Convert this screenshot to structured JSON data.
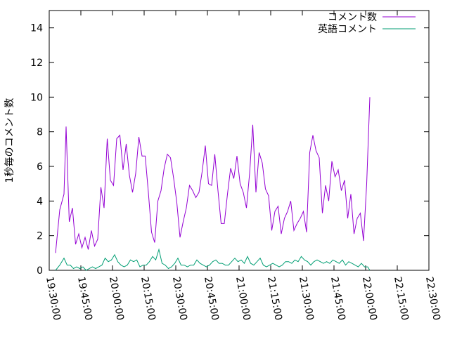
{
  "chart_data": {
    "type": "line",
    "ylabel": "1秒毎のコメント数",
    "ylim": [
      0,
      15
    ],
    "xlim": [
      "19:30:00",
      "22:30:00"
    ],
    "x_tick_labels": [
      "19:30:00",
      "19:45:00",
      "20:00:00",
      "20:15:00",
      "20:30:00",
      "20:45:00",
      "21:00:00",
      "21:15:00",
      "21:30:00",
      "21:45:00",
      "22:00:00",
      "22:15:00",
      "22:30:00"
    ],
    "y_ticks": [
      0,
      2,
      4,
      6,
      8,
      10,
      12,
      14
    ],
    "grid": false,
    "legend": "top-right",
    "series": [
      {
        "name": "コメント数",
        "color": "#9400d3",
        "points": [
          [
            "19:33:00",
            1.0
          ],
          [
            "19:35:00",
            3.5
          ],
          [
            "19:37:00",
            4.4
          ],
          [
            "19:38:00",
            8.3
          ],
          [
            "19:39:30",
            2.8
          ],
          [
            "19:41:00",
            3.6
          ],
          [
            "19:42:30",
            1.5
          ],
          [
            "19:44:00",
            2.1
          ],
          [
            "19:45:30",
            1.3
          ],
          [
            "19:47:00",
            1.9
          ],
          [
            "19:48:30",
            1.2
          ],
          [
            "19:50:00",
            2.3
          ],
          [
            "19:51:30",
            1.4
          ],
          [
            "19:53:00",
            1.8
          ],
          [
            "19:54:30",
            4.8
          ],
          [
            "19:56:00",
            3.6
          ],
          [
            "19:57:30",
            7.6
          ],
          [
            "19:59:00",
            5.2
          ],
          [
            "20:00:30",
            4.9
          ],
          [
            "20:02:00",
            7.6
          ],
          [
            "20:03:30",
            7.8
          ],
          [
            "20:05:00",
            5.8
          ],
          [
            "20:06:30",
            7.3
          ],
          [
            "20:08:00",
            5.5
          ],
          [
            "20:09:30",
            4.5
          ],
          [
            "20:11:00",
            5.6
          ],
          [
            "20:12:30",
            7.7
          ],
          [
            "20:14:00",
            6.6
          ],
          [
            "20:15:30",
            6.6
          ],
          [
            "20:17:00",
            4.5
          ],
          [
            "20:18:30",
            2.2
          ],
          [
            "20:20:00",
            1.6
          ],
          [
            "20:21:30",
            4.0
          ],
          [
            "20:23:00",
            4.6
          ],
          [
            "20:24:30",
            5.9
          ],
          [
            "20:26:00",
            6.7
          ],
          [
            "20:27:30",
            6.5
          ],
          [
            "20:29:00",
            5.3
          ],
          [
            "20:30:30",
            3.9
          ],
          [
            "20:32:00",
            1.9
          ],
          [
            "20:33:30",
            2.8
          ],
          [
            "20:35:00",
            3.6
          ],
          [
            "20:36:30",
            4.9
          ],
          [
            "20:38:00",
            4.6
          ],
          [
            "20:39:30",
            4.2
          ],
          [
            "20:41:00",
            4.5
          ],
          [
            "20:42:30",
            5.7
          ],
          [
            "20:44:00",
            7.2
          ],
          [
            "20:45:30",
            5.0
          ],
          [
            "20:47:00",
            4.9
          ],
          [
            "20:48:30",
            6.7
          ],
          [
            "20:50:00",
            4.6
          ],
          [
            "20:51:30",
            2.7
          ],
          [
            "20:53:00",
            2.7
          ],
          [
            "20:54:30",
            4.4
          ],
          [
            "20:56:00",
            5.9
          ],
          [
            "20:57:30",
            5.3
          ],
          [
            "20:59:00",
            6.6
          ],
          [
            "21:00:30",
            5.0
          ],
          [
            "21:02:00",
            4.5
          ],
          [
            "21:03:30",
            3.6
          ],
          [
            "21:05:00",
            5.6
          ],
          [
            "21:06:30",
            8.4
          ],
          [
            "21:08:00",
            4.5
          ],
          [
            "21:09:30",
            6.8
          ],
          [
            "21:11:00",
            6.2
          ],
          [
            "21:12:30",
            4.7
          ],
          [
            "21:14:00",
            4.3
          ],
          [
            "21:15:30",
            2.3
          ],
          [
            "21:17:00",
            3.4
          ],
          [
            "21:18:30",
            3.7
          ],
          [
            "21:20:00",
            2.1
          ],
          [
            "21:21:30",
            3.0
          ],
          [
            "21:23:00",
            3.4
          ],
          [
            "21:24:30",
            4.0
          ],
          [
            "21:26:00",
            2.3
          ],
          [
            "21:27:30",
            2.7
          ],
          [
            "21:29:00",
            3.0
          ],
          [
            "21:30:30",
            3.4
          ],
          [
            "21:32:00",
            2.2
          ],
          [
            "21:33:30",
            6.8
          ],
          [
            "21:35:00",
            7.8
          ],
          [
            "21:36:30",
            6.9
          ],
          [
            "21:38:00",
            6.5
          ],
          [
            "21:39:30",
            3.3
          ],
          [
            "21:41:00",
            4.9
          ],
          [
            "21:42:30",
            4.0
          ],
          [
            "21:44:00",
            6.3
          ],
          [
            "21:45:30",
            5.4
          ],
          [
            "21:47:00",
            5.8
          ],
          [
            "21:48:30",
            4.6
          ],
          [
            "21:50:00",
            5.2
          ],
          [
            "21:51:30",
            3.0
          ],
          [
            "21:53:00",
            4.4
          ],
          [
            "21:54:30",
            2.1
          ],
          [
            "21:56:00",
            3.0
          ],
          [
            "21:57:30",
            3.3
          ],
          [
            "21:59:00",
            1.7
          ],
          [
            "22:00:30",
            5.0
          ],
          [
            "22:02:00",
            10.0
          ]
        ]
      },
      {
        "name": "英語コメント",
        "color": "#009e73",
        "points": [
          [
            "19:33:00",
            0.0
          ],
          [
            "19:35:00",
            0.3
          ],
          [
            "19:37:00",
            0.7
          ],
          [
            "19:38:30",
            0.3
          ],
          [
            "19:40:00",
            0.3
          ],
          [
            "19:41:30",
            0.1
          ],
          [
            "19:43:00",
            0.2
          ],
          [
            "19:44:30",
            0.1
          ],
          [
            "19:46:00",
            0.2
          ],
          [
            "19:47:30",
            0.0
          ],
          [
            "19:49:00",
            0.1
          ],
          [
            "19:50:30",
            0.2
          ],
          [
            "19:52:00",
            0.1
          ],
          [
            "19:53:30",
            0.2
          ],
          [
            "19:55:00",
            0.3
          ],
          [
            "19:56:30",
            0.7
          ],
          [
            "19:58:00",
            0.5
          ],
          [
            "19:59:30",
            0.6
          ],
          [
            "20:01:00",
            0.9
          ],
          [
            "20:02:30",
            0.5
          ],
          [
            "20:04:00",
            0.3
          ],
          [
            "20:05:30",
            0.2
          ],
          [
            "20:07:00",
            0.3
          ],
          [
            "20:08:30",
            0.6
          ],
          [
            "20:10:00",
            0.5
          ],
          [
            "20:11:30",
            0.6
          ],
          [
            "20:13:00",
            0.2
          ],
          [
            "20:14:30",
            0.3
          ],
          [
            "20:16:00",
            0.3
          ],
          [
            "20:17:30",
            0.5
          ],
          [
            "20:19:00",
            0.8
          ],
          [
            "20:20:30",
            0.6
          ],
          [
            "20:22:00",
            1.2
          ],
          [
            "20:23:30",
            0.4
          ],
          [
            "20:25:00",
            0.3
          ],
          [
            "20:26:30",
            0.1
          ],
          [
            "20:28:00",
            0.2
          ],
          [
            "20:29:30",
            0.4
          ],
          [
            "20:31:00",
            0.7
          ],
          [
            "20:32:30",
            0.3
          ],
          [
            "20:34:00",
            0.3
          ],
          [
            "20:35:30",
            0.2
          ],
          [
            "20:37:00",
            0.3
          ],
          [
            "20:38:30",
            0.3
          ],
          [
            "20:40:00",
            0.6
          ],
          [
            "20:41:30",
            0.4
          ],
          [
            "20:43:00",
            0.3
          ],
          [
            "20:44:30",
            0.2
          ],
          [
            "20:46:00",
            0.3
          ],
          [
            "20:47:30",
            0.5
          ],
          [
            "20:49:00",
            0.6
          ],
          [
            "20:50:30",
            0.4
          ],
          [
            "20:52:00",
            0.4
          ],
          [
            "20:53:30",
            0.3
          ],
          [
            "20:55:00",
            0.3
          ],
          [
            "20:56:30",
            0.5
          ],
          [
            "20:58:00",
            0.7
          ],
          [
            "20:59:30",
            0.5
          ],
          [
            "21:01:00",
            0.6
          ],
          [
            "21:02:30",
            0.4
          ],
          [
            "21:04:00",
            0.8
          ],
          [
            "21:05:30",
            0.4
          ],
          [
            "21:07:00",
            0.3
          ],
          [
            "21:08:30",
            0.5
          ],
          [
            "21:10:00",
            0.7
          ],
          [
            "21:11:30",
            0.3
          ],
          [
            "21:13:00",
            0.2
          ],
          [
            "21:14:30",
            0.3
          ],
          [
            "21:16:00",
            0.4
          ],
          [
            "21:17:30",
            0.3
          ],
          [
            "21:19:00",
            0.2
          ],
          [
            "21:20:30",
            0.3
          ],
          [
            "21:22:00",
            0.5
          ],
          [
            "21:23:30",
            0.5
          ],
          [
            "21:25:00",
            0.4
          ],
          [
            "21:26:30",
            0.6
          ],
          [
            "21:28:00",
            0.5
          ],
          [
            "21:29:30",
            0.8
          ],
          [
            "21:31:00",
            0.6
          ],
          [
            "21:32:30",
            0.5
          ],
          [
            "21:34:00",
            0.3
          ],
          [
            "21:35:30",
            0.5
          ],
          [
            "21:37:00",
            0.6
          ],
          [
            "21:38:30",
            0.5
          ],
          [
            "21:40:00",
            0.4
          ],
          [
            "21:41:30",
            0.5
          ],
          [
            "21:43:00",
            0.4
          ],
          [
            "21:44:30",
            0.6
          ],
          [
            "21:46:00",
            0.5
          ],
          [
            "21:47:30",
            0.4
          ],
          [
            "21:49:00",
            0.6
          ],
          [
            "21:50:30",
            0.3
          ],
          [
            "21:52:00",
            0.5
          ],
          [
            "21:53:30",
            0.4
          ],
          [
            "21:55:00",
            0.3
          ],
          [
            "21:56:30",
            0.2
          ],
          [
            "21:58:00",
            0.4
          ],
          [
            "21:59:30",
            0.2
          ],
          [
            "22:01:00",
            0.2
          ],
          [
            "22:02:00",
            0.0
          ]
        ]
      }
    ]
  }
}
